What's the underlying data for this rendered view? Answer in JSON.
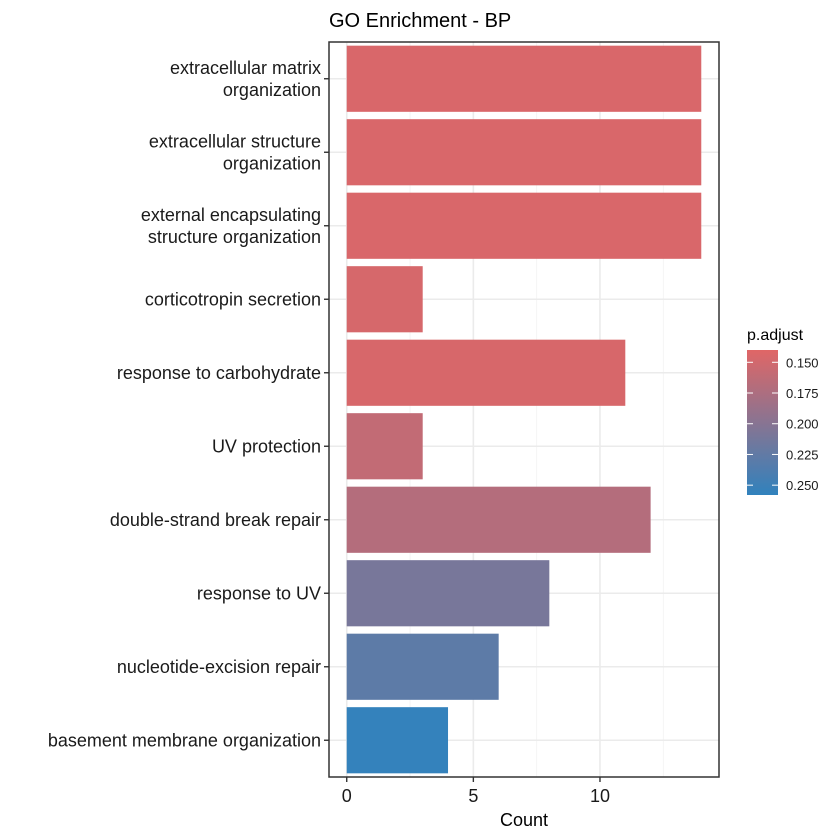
{
  "chart_data": {
    "type": "bar",
    "orientation": "horizontal",
    "title": "GO Enrichment - BP",
    "xlabel": "Count",
    "ylabel": "",
    "xlim": [
      -0.7,
      14.7
    ],
    "x_ticks": [
      0,
      5,
      10
    ],
    "grid": true,
    "categories": [
      "extracellular matrix\norganization",
      "extracellular structure\norganization",
      "external encapsulating\nstructure organization",
      "corticotropin secretion",
      "response to carbohydrate",
      "UV protection",
      "double-strand break repair",
      "response to UV",
      "nucleotide-excision repair",
      "basement membrane organization"
    ],
    "values": [
      14,
      14,
      14,
      3,
      11,
      3,
      12,
      8,
      6,
      4
    ],
    "p_adjust": [
      0.145,
      0.145,
      0.145,
      0.147,
      0.146,
      0.16,
      0.17,
      0.21,
      0.228,
      0.256
    ],
    "legend": {
      "title": "p.adjust",
      "position": "right",
      "range": [
        0.14,
        0.258
      ],
      "ticks": [
        0.15,
        0.175,
        0.2,
        0.225,
        0.25
      ],
      "tick_labels": [
        "0.150",
        "0.175",
        "0.200",
        "0.225",
        "0.250"
      ],
      "color_low": "#e06666",
      "color_high": "#3182bd"
    }
  }
}
